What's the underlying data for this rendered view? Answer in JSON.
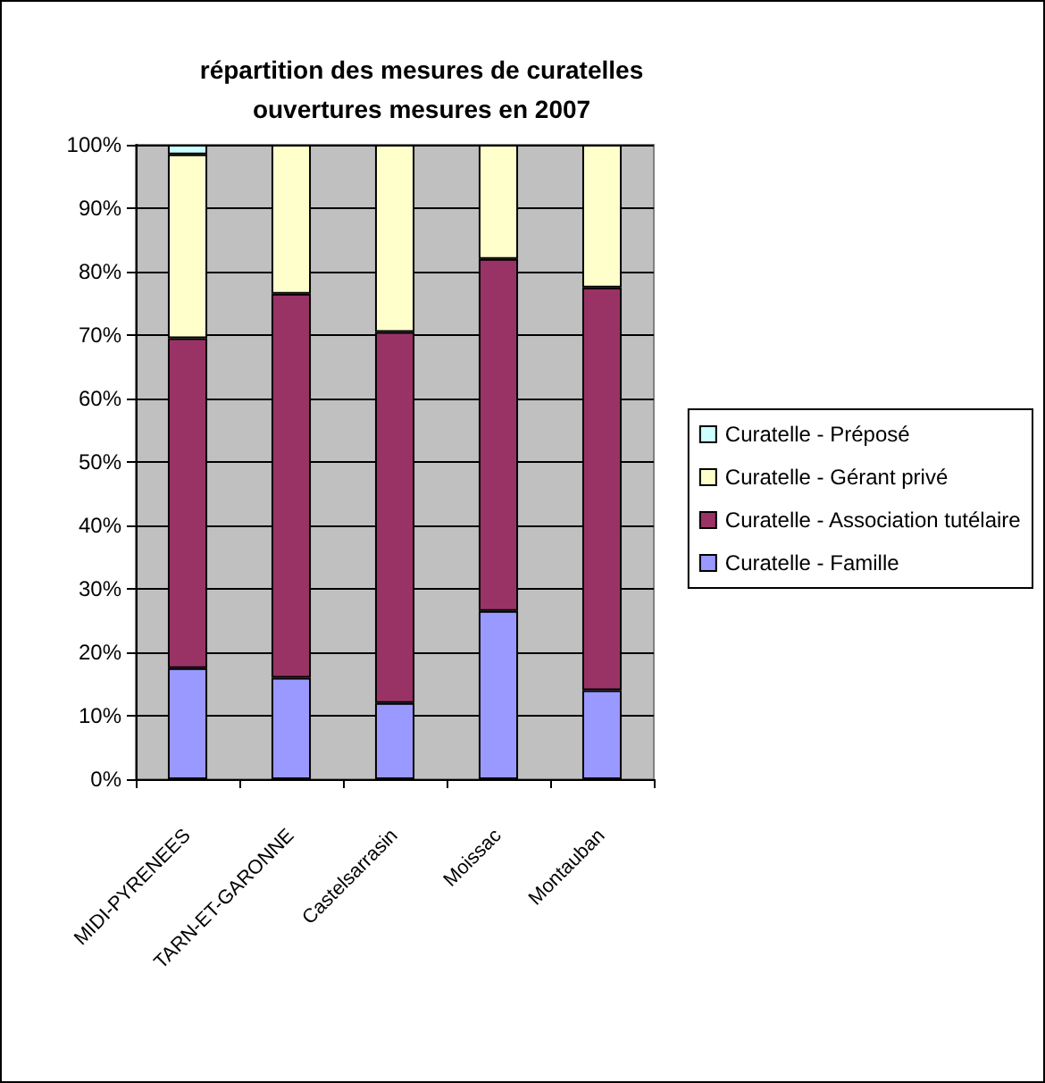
{
  "chart_data": {
    "type": "bar",
    "title": "répartition des mesures de curatelles\nouvertures mesures en 2007",
    "categories": [
      "MIDI-PYRENEES",
      "TARN-ET-GARONNE",
      "Castelsarrasin",
      "Moissac",
      "Montauban"
    ],
    "stacked": true,
    "series": [
      {
        "name": "Curatelle - Famille",
        "color": "#9999ff",
        "values": [
          17.5,
          16,
          12,
          26.5,
          14
        ]
      },
      {
        "name": "Curatelle - Association tutélaire",
        "color": "#993366",
        "values": [
          52,
          60.5,
          58.5,
          55.5,
          63.5
        ]
      },
      {
        "name": "Curatelle - Gérant privé",
        "color": "#ffffcc",
        "values": [
          29,
          23.5,
          29.5,
          18,
          22.5
        ]
      },
      {
        "name": "Curatelle - Préposé",
        "color": "#ccffff",
        "values": [
          1.5,
          0,
          0,
          0,
          0
        ]
      }
    ],
    "ylim": [
      0,
      100
    ],
    "yticks": [
      {
        "value": 0,
        "label": "0%"
      },
      {
        "value": 10,
        "label": "10%"
      },
      {
        "value": 20,
        "label": "20%"
      },
      {
        "value": 30,
        "label": "30%"
      },
      {
        "value": 40,
        "label": "40%"
      },
      {
        "value": 50,
        "label": "50%"
      },
      {
        "value": 60,
        "label": "60%"
      },
      {
        "value": 70,
        "label": "70%"
      },
      {
        "value": 80,
        "label": "80%"
      },
      {
        "value": 90,
        "label": "90%"
      },
      {
        "value": 100,
        "label": "100%"
      }
    ],
    "grid": "y",
    "legend": "right"
  }
}
